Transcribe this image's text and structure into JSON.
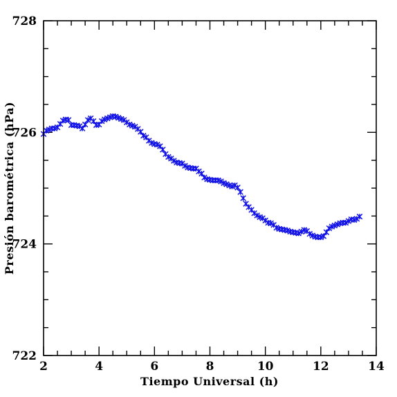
{
  "chart_data": {
    "type": "scatter",
    "title": "",
    "xlabel": "Tiempo Universal (h)",
    "ylabel": "Presión barométrica (hPa)",
    "xlim": [
      2,
      14
    ],
    "ylim": [
      722,
      728
    ],
    "x_ticks": [
      "2",
      "4",
      "6",
      "8",
      "10",
      "12",
      "14"
    ],
    "y_ticks": [
      "722",
      "724",
      "726",
      "728"
    ],
    "x_tick_values": [
      2,
      4,
      6,
      8,
      10,
      12,
      14
    ],
    "y_tick_values": [
      722,
      724,
      726,
      728
    ],
    "marker": "x",
    "grid": false,
    "colors": {
      "series": "#1010e8",
      "axes": "#000000"
    },
    "series": [
      {
        "x": [
          2.0,
          2.1,
          2.2,
          2.3,
          2.4,
          2.5,
          2.6,
          2.7,
          2.8,
          2.9,
          3.0,
          3.1,
          3.2,
          3.3,
          3.4,
          3.5,
          3.6,
          3.7,
          3.8,
          3.9,
          4.0,
          4.1,
          4.2,
          4.3,
          4.4,
          4.5,
          4.6,
          4.7,
          4.8,
          4.9,
          5.0,
          5.1,
          5.2,
          5.3,
          5.4,
          5.5,
          5.6,
          5.7,
          5.8,
          5.9,
          6.0,
          6.1,
          6.2,
          6.3,
          6.4,
          6.5,
          6.6,
          6.7,
          6.8,
          6.9,
          7.0,
          7.1,
          7.2,
          7.3,
          7.4,
          7.5,
          7.6,
          7.7,
          7.8,
          7.9,
          8.0,
          8.1,
          8.2,
          8.3,
          8.4,
          8.5,
          8.6,
          8.7,
          8.8,
          8.9,
          9.0,
          9.1,
          9.2,
          9.3,
          9.4,
          9.5,
          9.6,
          9.7,
          9.8,
          9.9,
          10.0,
          10.1,
          10.2,
          10.3,
          10.4,
          10.5,
          10.6,
          10.7,
          10.8,
          10.9,
          11.0,
          11.1,
          11.2,
          11.3,
          11.4,
          11.5,
          11.6,
          11.7,
          11.8,
          11.9,
          12.0,
          12.1,
          12.2,
          12.3,
          12.4,
          12.5,
          12.6,
          12.7,
          12.8,
          12.9,
          13.0,
          13.1,
          13.2,
          13.3,
          13.4
        ],
        "y": [
          725.97,
          726.03,
          726.05,
          726.07,
          726.07,
          726.09,
          726.15,
          726.21,
          726.23,
          726.22,
          726.13,
          726.13,
          726.12,
          726.11,
          726.07,
          726.14,
          726.22,
          726.25,
          726.2,
          726.13,
          726.14,
          726.2,
          726.23,
          726.25,
          726.27,
          726.29,
          726.28,
          726.26,
          726.24,
          726.22,
          726.18,
          726.14,
          726.12,
          726.1,
          726.06,
          726.01,
          725.94,
          725.91,
          725.85,
          725.81,
          725.79,
          725.78,
          725.75,
          725.69,
          725.61,
          725.56,
          725.53,
          725.49,
          725.46,
          725.45,
          725.44,
          725.4,
          725.37,
          725.36,
          725.35,
          725.35,
          725.3,
          725.26,
          725.19,
          725.16,
          725.15,
          725.14,
          725.14,
          725.14,
          725.12,
          725.09,
          725.07,
          725.05,
          725.03,
          725.05,
          725.01,
          724.93,
          724.82,
          724.72,
          724.66,
          724.61,
          724.55,
          724.51,
          724.48,
          724.46,
          724.42,
          724.38,
          724.37,
          724.34,
          724.29,
          724.27,
          724.26,
          724.25,
          724.24,
          724.22,
          724.21,
          724.2,
          724.19,
          724.22,
          724.25,
          724.23,
          724.18,
          724.15,
          724.13,
          724.12,
          724.12,
          724.14,
          724.21,
          724.28,
          724.31,
          724.33,
          724.35,
          724.37,
          724.38,
          724.38,
          724.41,
          724.44,
          724.43,
          724.45,
          724.49
        ]
      }
    ]
  }
}
